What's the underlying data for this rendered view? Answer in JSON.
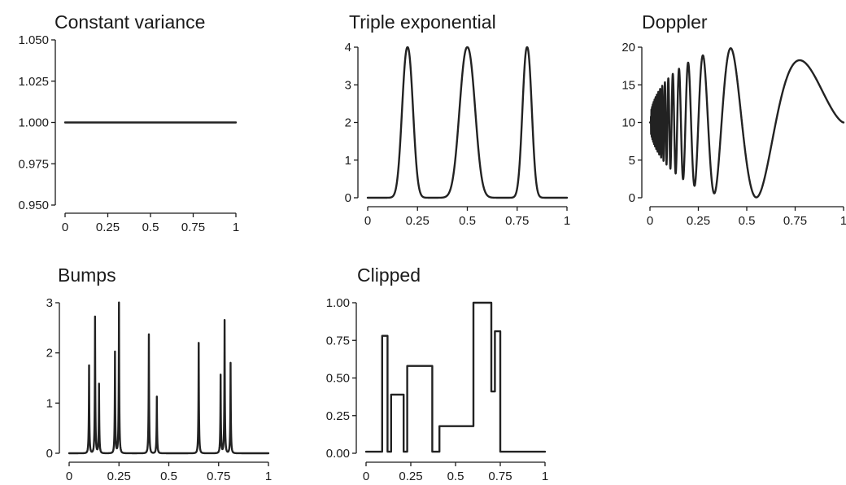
{
  "chart_data": [
    {
      "type": "line",
      "title": "Constant variance",
      "function": "constant",
      "xlim": [
        0,
        1
      ],
      "ylim": [
        0.95,
        1.05
      ],
      "x_ticks": [
        "0",
        "0.25",
        "0.5",
        "0.75",
        "1"
      ],
      "y_ticks": [
        "0.950",
        "0.975",
        "1.000",
        "1.025",
        "1.050"
      ],
      "series": [
        {
          "x": [
            0,
            1
          ],
          "y": [
            1.0,
            1.0
          ]
        }
      ]
    },
    {
      "type": "line",
      "title": "Triple exponential",
      "function": "triple_exponential",
      "xlim": [
        0,
        1
      ],
      "ylim": [
        0,
        4
      ],
      "x_ticks": [
        "0",
        "0.25",
        "0.5",
        "0.75",
        "1"
      ],
      "y_ticks": [
        "0",
        "1",
        "2",
        "3",
        "4"
      ],
      "peaks": [
        {
          "x": 0.2,
          "y": 4,
          "width": 0.035
        },
        {
          "x": 0.5,
          "y": 4,
          "width": 0.05
        },
        {
          "x": 0.8,
          "y": 4,
          "width": 0.03
        }
      ],
      "baseline": 0
    },
    {
      "type": "line",
      "title": "Doppler",
      "function": "doppler",
      "xlim": [
        0,
        1
      ],
      "ylim": [
        0,
        20
      ],
      "x_ticks": [
        "0",
        "0.25",
        "0.5",
        "0.75",
        "1"
      ],
      "y_ticks": [
        "0",
        "5",
        "10",
        "15",
        "20"
      ],
      "center": 10,
      "amplitude": 10,
      "end_value": 10
    },
    {
      "type": "line",
      "title": "Bumps",
      "function": "bumps",
      "xlim": [
        0,
        1
      ],
      "ylim": [
        0,
        3
      ],
      "x_ticks": [
        "0",
        "0.25",
        "0.5",
        "0.75",
        "1"
      ],
      "y_ticks": [
        "0",
        "1",
        "2",
        "3"
      ],
      "peaks": [
        {
          "x": 0.1,
          "y": 1.75
        },
        {
          "x": 0.13,
          "y": 2.72
        },
        {
          "x": 0.15,
          "y": 1.38
        },
        {
          "x": 0.23,
          "y": 2.02
        },
        {
          "x": 0.25,
          "y": 3.0
        },
        {
          "x": 0.4,
          "y": 2.37
        },
        {
          "x": 0.44,
          "y": 1.13
        },
        {
          "x": 0.65,
          "y": 2.2
        },
        {
          "x": 0.76,
          "y": 1.56
        },
        {
          "x": 0.78,
          "y": 2.65
        },
        {
          "x": 0.81,
          "y": 1.8
        }
      ],
      "baseline": 0
    },
    {
      "type": "line",
      "title": "Clipped",
      "function": "step",
      "xlim": [
        0,
        1
      ],
      "ylim": [
        0,
        1
      ],
      "x_ticks": [
        "0",
        "0.25",
        "0.5",
        "0.75",
        "1"
      ],
      "y_ticks": [
        "0.00",
        "0.25",
        "0.50",
        "0.75",
        "1.00"
      ],
      "steps": [
        {
          "x0": 0.0,
          "x1": 0.09,
          "y": 0.01
        },
        {
          "x0": 0.09,
          "x1": 0.12,
          "y": 0.78
        },
        {
          "x0": 0.12,
          "x1": 0.14,
          "y": 0.01
        },
        {
          "x0": 0.14,
          "x1": 0.21,
          "y": 0.39
        },
        {
          "x0": 0.21,
          "x1": 0.23,
          "y": 0.01
        },
        {
          "x0": 0.23,
          "x1": 0.37,
          "y": 0.58
        },
        {
          "x0": 0.37,
          "x1": 0.41,
          "y": 0.01
        },
        {
          "x0": 0.41,
          "x1": 0.6,
          "y": 0.18
        },
        {
          "x0": 0.6,
          "x1": 0.7,
          "y": 1.0
        },
        {
          "x0": 0.7,
          "x1": 0.72,
          "y": 0.41
        },
        {
          "x0": 0.72,
          "x1": 0.75,
          "y": 0.81
        },
        {
          "x0": 0.75,
          "x1": 0.85,
          "y": 0.01
        },
        {
          "x0": 0.85,
          "x1": 1.0,
          "y": 0.01
        }
      ]
    }
  ]
}
